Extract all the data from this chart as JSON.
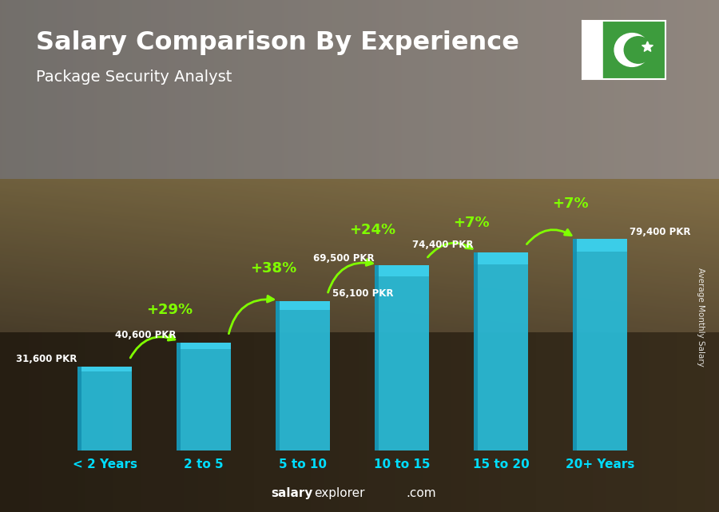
{
  "title": "Salary Comparison By Experience",
  "subtitle": "Package Security Analyst",
  "categories": [
    "< 2 Years",
    "2 to 5",
    "5 to 10",
    "10 to 15",
    "15 to 20",
    "20+ Years"
  ],
  "values": [
    31600,
    40600,
    56100,
    69500,
    74400,
    79400
  ],
  "salary_labels": [
    "31,600 PKR",
    "40,600 PKR",
    "56,100 PKR",
    "69,500 PKR",
    "74,400 PKR",
    "79,400 PKR"
  ],
  "pct_labels": [
    "+29%",
    "+38%",
    "+24%",
    "+7%",
    "+7%"
  ],
  "bar_color_main": "#29b8d4",
  "bar_color_light": "#40d4f0",
  "bar_color_dark": "#1590b0",
  "pct_color": "#80ff00",
  "salary_label_color": "#ffffff",
  "title_color": "#ffffff",
  "xlabel_color": "#00ddff",
  "side_label": "Average Monthly Salary",
  "footer_salary": "salary",
  "footer_explorer": "explorer",
  "footer_com": ".com",
  "ylim": [
    0,
    100000
  ],
  "flag_green": "#3d9c3d",
  "flag_white": "#ffffff"
}
